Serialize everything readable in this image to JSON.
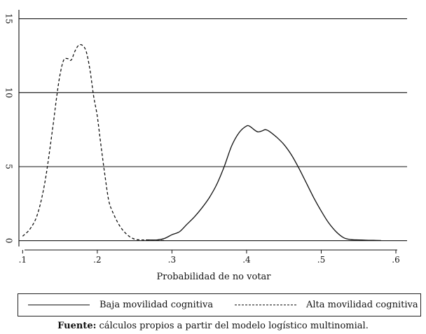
{
  "chart_data": {
    "type": "line",
    "title": "",
    "xlabel": "Probabilidad de no votar",
    "ylabel": "",
    "xlim": [
      0.095,
      0.615
    ],
    "ylim": [
      -0.3,
      15.6
    ],
    "x_ticks": [
      0.1,
      0.2,
      0.3,
      0.4,
      0.5,
      0.6
    ],
    "x_tick_labels": [
      ".1",
      ".2",
      ".3",
      ".4",
      ".5",
      ".6"
    ],
    "y_ticks": [
      0,
      5,
      10,
      15
    ],
    "y_tick_labels": [
      "0",
      "5",
      "10",
      "15"
    ],
    "grid": "horizontal",
    "legend_position": "bottom",
    "series": [
      {
        "name": "Baja movilidad cognitiva",
        "style": "solid",
        "color": "#111111",
        "x": [
          0.265,
          0.28,
          0.29,
          0.3,
          0.31,
          0.32,
          0.33,
          0.34,
          0.35,
          0.36,
          0.37,
          0.38,
          0.39,
          0.4,
          0.405,
          0.41,
          0.415,
          0.42,
          0.425,
          0.43,
          0.44,
          0.45,
          0.46,
          0.47,
          0.48,
          0.49,
          0.5,
          0.51,
          0.52,
          0.53,
          0.54,
          0.55,
          0.56,
          0.57,
          0.58
        ],
        "y": [
          0.05,
          0.05,
          0.15,
          0.4,
          0.6,
          1.1,
          1.6,
          2.2,
          2.9,
          3.8,
          5.0,
          6.4,
          7.3,
          7.75,
          7.7,
          7.5,
          7.35,
          7.4,
          7.5,
          7.4,
          7.0,
          6.5,
          5.8,
          4.9,
          3.9,
          2.9,
          2.0,
          1.2,
          0.6,
          0.2,
          0.07,
          0.05,
          0.03,
          0.02,
          0.01
        ]
      },
      {
        "name": "Alta movilidad cognitiva",
        "style": "dashed",
        "color": "#111111",
        "x": [
          0.1,
          0.11,
          0.12,
          0.13,
          0.14,
          0.145,
          0.15,
          0.155,
          0.16,
          0.165,
          0.17,
          0.175,
          0.18,
          0.185,
          0.19,
          0.195,
          0.2,
          0.205,
          0.21,
          0.215,
          0.22,
          0.23,
          0.24,
          0.25,
          0.26,
          0.27,
          0.28,
          0.29
        ],
        "y": [
          0.3,
          0.8,
          1.8,
          4.0,
          7.5,
          9.5,
          11.2,
          12.2,
          12.3,
          12.2,
          12.8,
          13.2,
          13.2,
          12.8,
          11.6,
          9.8,
          8.4,
          6.4,
          4.5,
          2.8,
          2.0,
          1.0,
          0.4,
          0.1,
          0.05,
          0.03,
          0.02,
          0.01
        ]
      }
    ]
  },
  "caption": {
    "label": "Fuente:",
    "text": " cálculos propios a partir del modelo logístico multinomial."
  }
}
